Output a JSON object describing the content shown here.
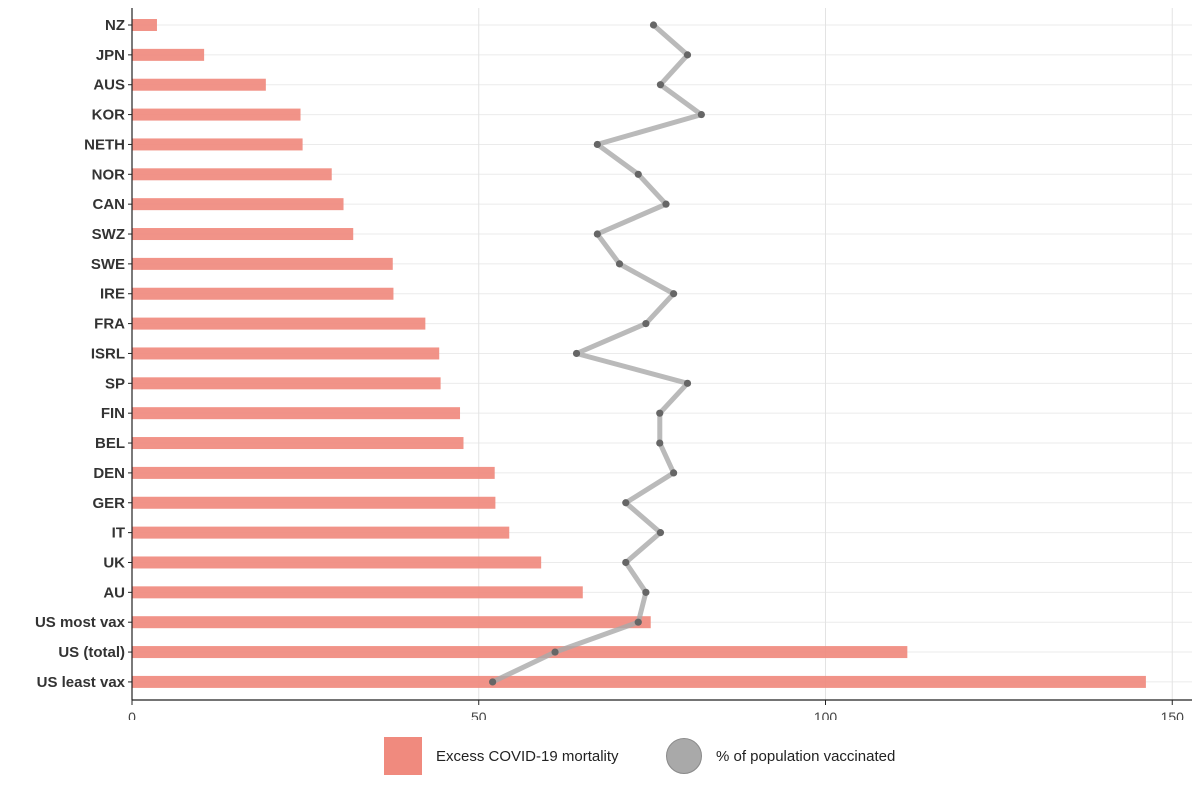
{
  "chart_data": {
    "type": "bar",
    "orientation": "horizontal",
    "title": "",
    "xlabel": "",
    "ylabel": "",
    "xlim": [
      0,
      152
    ],
    "x_ticks": [
      0,
      50,
      100,
      150
    ],
    "grid": true,
    "legend_position": "bottom",
    "categories": [
      "NZ",
      "JPN",
      "AUS",
      "KOR",
      "NETH",
      "NOR",
      "CAN",
      "SWZ",
      "SWE",
      "IRE",
      "FRA",
      "ISRL",
      "SP",
      "FIN",
      "BEL",
      "DEN",
      "GER",
      "IT",
      "UK",
      "AU",
      "US most vax",
      "US (total)",
      "US least vax"
    ],
    "series": [
      {
        "name": "Excess COVID-19 mortality",
        "kind": "bar",
        "color": "#f08a7e",
        "values": [
          3.6,
          10.4,
          19.3,
          24.3,
          24.6,
          28.8,
          30.5,
          31.9,
          37.6,
          37.7,
          42.3,
          44.3,
          44.5,
          47.3,
          47.8,
          52.3,
          52.4,
          54.4,
          59.0,
          65.0,
          74.8,
          111.8,
          146.2
        ]
      },
      {
        "name": "% of population vaccinated",
        "kind": "line",
        "color": "#a9a9a9",
        "point_color": "#666666",
        "values": [
          75.2,
          80.1,
          76.2,
          82.1,
          67.1,
          73.0,
          77.0,
          67.1,
          70.3,
          78.1,
          74.1,
          64.1,
          80.1,
          76.1,
          76.1,
          78.1,
          71.2,
          76.2,
          71.2,
          74.1,
          73.0,
          61.0,
          52.0
        ]
      }
    ]
  }
}
